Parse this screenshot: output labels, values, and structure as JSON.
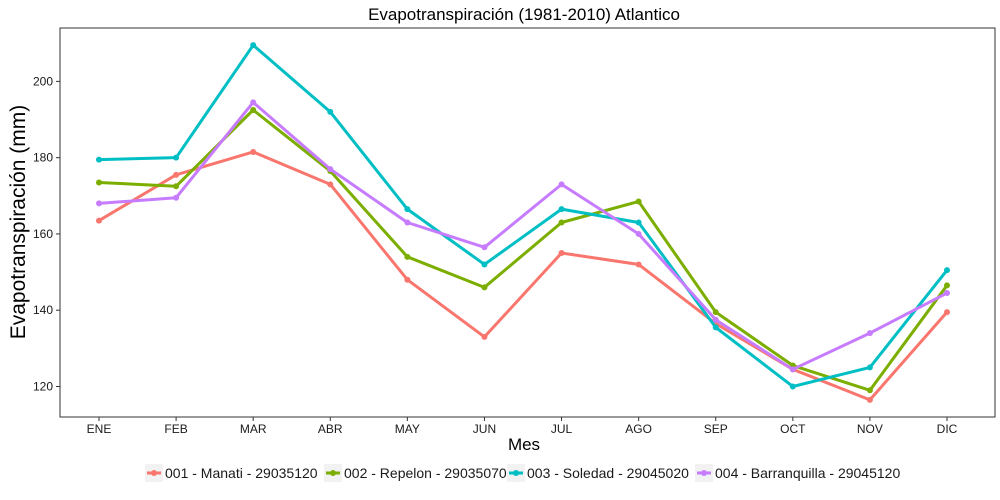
{
  "chart_data": {
    "type": "line",
    "title": "Evapotranspiración (1981-2010)  Atlantico",
    "xlabel": "Mes",
    "ylabel": "Evapotranspiración  (mm)",
    "categories": [
      "ENE",
      "FEB",
      "MAR",
      "ABR",
      "MAY",
      "JUN",
      "JUL",
      "AGO",
      "SEP",
      "OCT",
      "NOV",
      "DIC"
    ],
    "ylim": [
      112,
      214
    ],
    "yticks": [
      120,
      140,
      160,
      180,
      200
    ],
    "grid": false,
    "legend_position": "bottom",
    "series": [
      {
        "name": "001 - Manati - 29035120",
        "color": "#F8766D",
        "values": [
          163.5,
          175.5,
          181.5,
          173,
          148,
          133,
          155,
          152,
          136.5,
          124.5,
          116.5,
          139.5
        ]
      },
      {
        "name": "002 - Repelon - 29035070",
        "color": "#7CAE00",
        "values": [
          173.5,
          172.5,
          192.5,
          176.5,
          154,
          146,
          163,
          168.5,
          139.5,
          125.5,
          119,
          146.5
        ]
      },
      {
        "name": "003 - Soledad - 29045020",
        "color": "#00BFC4",
        "values": [
          179.5,
          180,
          209.5,
          192,
          166.5,
          152,
          166.5,
          163,
          135.5,
          120,
          125,
          150.5
        ]
      },
      {
        "name": "004 - Barranquilla - 29045120",
        "color": "#C77CFF",
        "values": [
          168,
          169.5,
          194.5,
          177,
          163,
          156.5,
          173,
          160,
          137.5,
          124.5,
          134,
          144.5
        ]
      }
    ]
  }
}
